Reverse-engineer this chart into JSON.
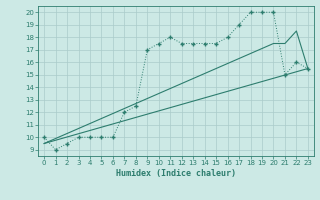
{
  "xlabel": "Humidex (Indice chaleur)",
  "bg_color": "#cce9e5",
  "line_color": "#2d7d6e",
  "grid_color": "#aaccca",
  "xlim": [
    -0.5,
    23.5
  ],
  "ylim": [
    8.5,
    20.5
  ],
  "xticks": [
    0,
    1,
    2,
    3,
    4,
    5,
    6,
    7,
    8,
    9,
    10,
    11,
    12,
    13,
    14,
    15,
    16,
    17,
    18,
    19,
    20,
    21,
    22,
    23
  ],
  "yticks": [
    9,
    10,
    11,
    12,
    13,
    14,
    15,
    16,
    17,
    18,
    19,
    20
  ],
  "line1_x": [
    0,
    1,
    2,
    3,
    4,
    5,
    6,
    7,
    8,
    9,
    10,
    11,
    12,
    13,
    14,
    15,
    16,
    17,
    18,
    19,
    20,
    21,
    22,
    23
  ],
  "line1_y": [
    10,
    9,
    9.5,
    10,
    10,
    10,
    10,
    12,
    12.5,
    17,
    17.5,
    18,
    17.5,
    17.5,
    17.5,
    17.5,
    18,
    19,
    20,
    20,
    20,
    15,
    16,
    15.5
  ],
  "line2_x": [
    0,
    23
  ],
  "line2_y": [
    9.5,
    15.5
  ],
  "line3_x": [
    0,
    20,
    21,
    22,
    23
  ],
  "line3_y": [
    9.5,
    17.5,
    17.5,
    18.5,
    15.5
  ]
}
